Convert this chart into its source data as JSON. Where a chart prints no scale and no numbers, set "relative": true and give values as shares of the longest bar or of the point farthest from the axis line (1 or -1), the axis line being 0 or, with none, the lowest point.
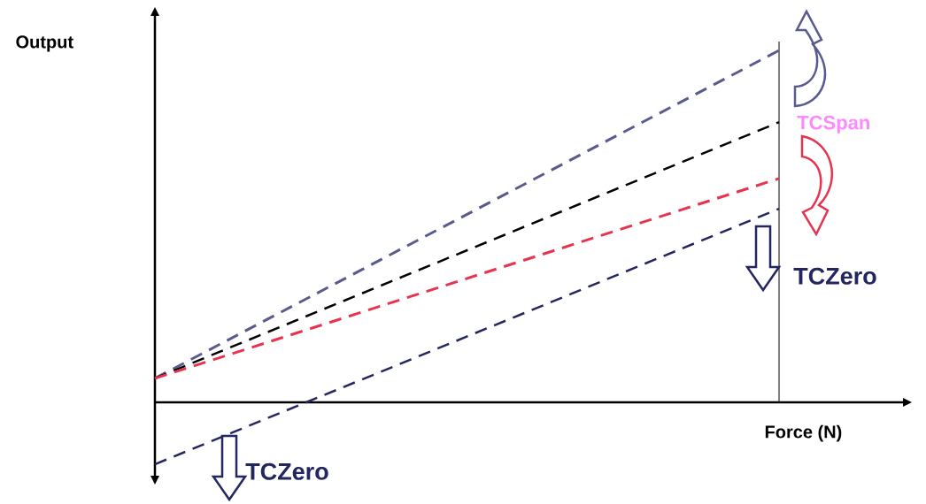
{
  "chart_data": {
    "type": "line",
    "relative": true,
    "xlabel": "Force (N)",
    "ylabel": "Output",
    "categories": [
      null,
      null
    ],
    "series": [
      {
        "color": "#595a8e",
        "values": [
          0.068,
          1.0
        ],
        "line_style": "dashed"
      },
      {
        "color": "#000000",
        "values": [
          0.068,
          0.796
        ],
        "line_style": "dashed"
      },
      {
        "color": "#e8334f",
        "values": [
          0.068,
          0.636
        ],
        "line_style": "dashed"
      },
      {
        "color": "#23265f",
        "values": [
          -0.176,
          0.55
        ],
        "line_style": "dashed"
      }
    ],
    "annotations": [
      "TCSpan",
      "TCZero",
      "TCZero"
    ],
    "marker": "none"
  }
}
